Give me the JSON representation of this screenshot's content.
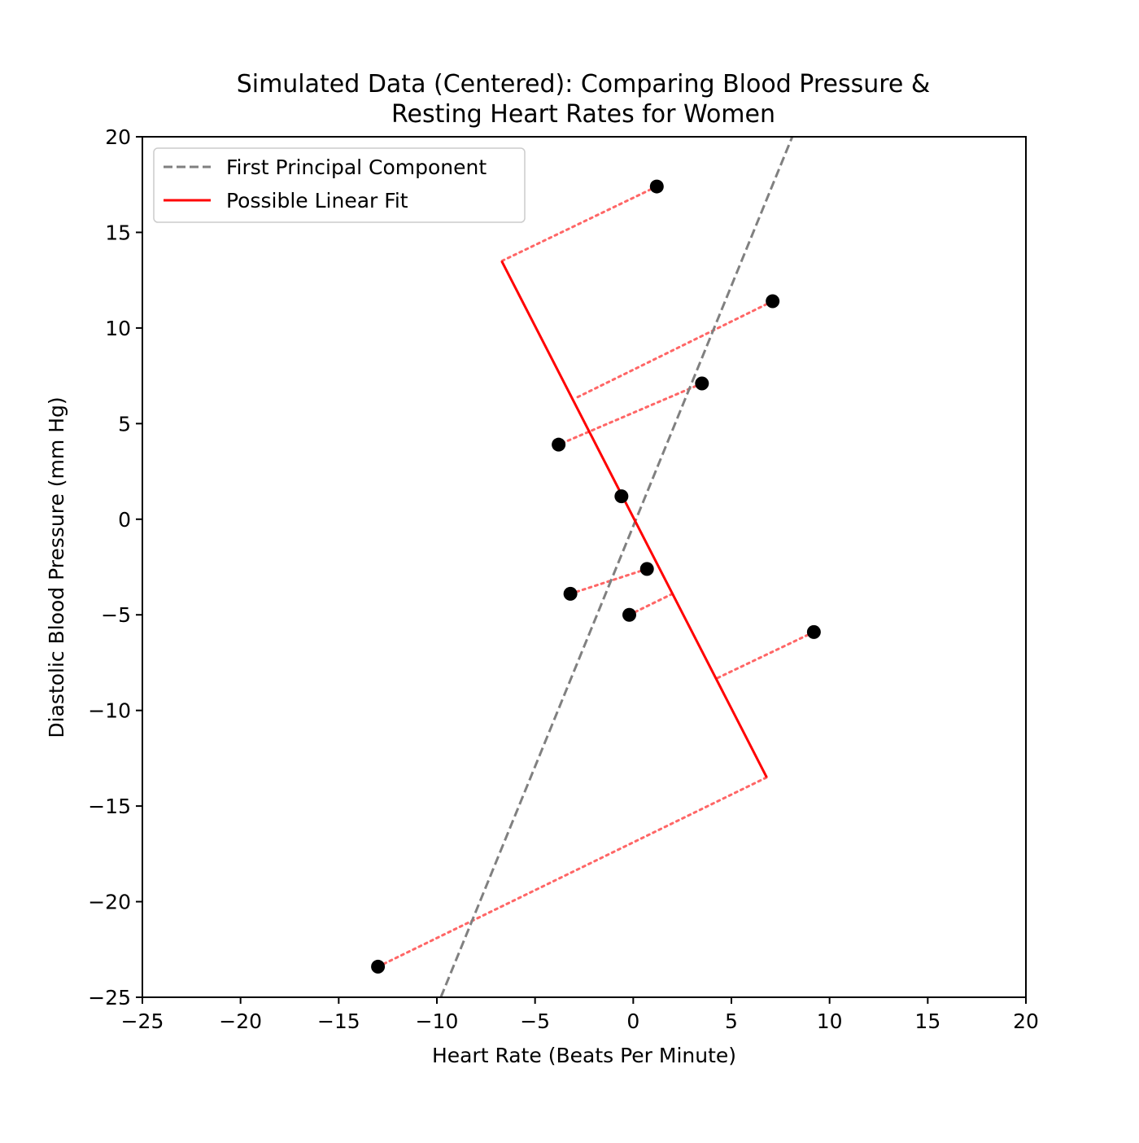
{
  "chart_data": {
    "type": "scatter",
    "title": "Simulated Data (Centered): Comparing Blood Pressure &",
    "subtitle": "Resting Heart Rates for Women",
    "xlabel": "Heart Rate (Beats Per Minute)",
    "ylabel": "Diastolic Blood Pressure (mm Hg)",
    "xlim": [
      -25,
      20
    ],
    "ylim": [
      -25,
      20
    ],
    "xticks": [
      -25,
      -20,
      -15,
      -10,
      -5,
      0,
      5,
      10,
      15,
      20
    ],
    "yticks": [
      -25,
      -20,
      -15,
      -10,
      -5,
      0,
      5,
      10,
      15,
      20
    ],
    "grid": false,
    "legend_position": "upper-left",
    "colors": {
      "points": "#000000",
      "pca_line": "#808080",
      "fit_line": "#ff0000",
      "residuals": "#ff6666"
    },
    "points": [
      {
        "x": 1.2,
        "y": 17.4
      },
      {
        "x": 7.1,
        "y": 11.4
      },
      {
        "x": 3.5,
        "y": 7.1
      },
      {
        "x": -3.8,
        "y": 3.9
      },
      {
        "x": -0.6,
        "y": 1.2
      },
      {
        "x": 0.7,
        "y": -2.6
      },
      {
        "x": -3.2,
        "y": -3.9
      },
      {
        "x": -0.2,
        "y": -5.0
      },
      {
        "x": 9.2,
        "y": -5.9
      },
      {
        "x": -13.0,
        "y": -23.4
      }
    ],
    "series": [
      {
        "name": "First Principal Component",
        "style": "dashed",
        "x": [
          -9.8,
          8.1
        ],
        "y": [
          -25,
          20
        ]
      },
      {
        "name": "Possible Linear Fit",
        "style": "solid",
        "x": [
          -6.7,
          6.8
        ],
        "y": [
          13.5,
          -13.5
        ]
      }
    ],
    "residual_lines": [
      {
        "from": [
          1.2,
          17.4
        ],
        "to": [
          -6.7,
          13.5
        ]
      },
      {
        "from": [
          7.1,
          11.4
        ],
        "to": [
          -3.0,
          6.3
        ]
      },
      {
        "from": [
          3.5,
          7.1
        ],
        "to": [
          -3.8,
          3.9
        ]
      },
      {
        "from": [
          0.7,
          -2.6
        ],
        "to": [
          -3.2,
          -3.9
        ]
      },
      {
        "from": [
          -0.2,
          -5.0
        ],
        "to": [
          2.0,
          -3.9
        ]
      },
      {
        "from": [
          9.2,
          -5.9
        ],
        "to": [
          4.3,
          -8.3
        ]
      },
      {
        "from": [
          -13.0,
          -23.4
        ],
        "to": [
          6.8,
          -13.5
        ]
      }
    ]
  }
}
